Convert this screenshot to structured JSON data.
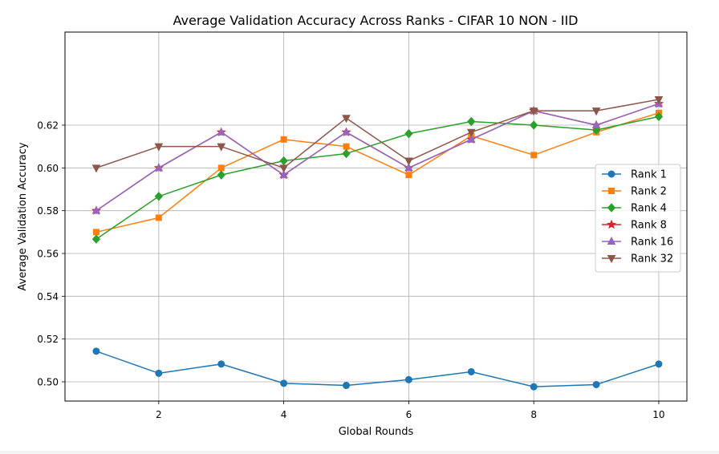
{
  "chart_data": {
    "type": "line",
    "title": "Average Validation Accuracy Across Ranks - CIFAR 10 NON - IID",
    "xlabel": "Global Rounds",
    "ylabel": "Average Validation Accuracy",
    "xlim": [
      0.5,
      10.45
    ],
    "ylim": [
      0.491,
      0.6635
    ],
    "x_ticks": [
      2,
      4,
      6,
      8,
      10
    ],
    "y_ticks": [
      0.5,
      0.52,
      0.54,
      0.56,
      0.58,
      0.6,
      0.62
    ],
    "x_tick_labels": [
      "2",
      "4",
      "6",
      "8",
      "10"
    ],
    "y_tick_labels": [
      "0.50",
      "0.52",
      "0.54",
      "0.56",
      "0.58",
      "0.60",
      "0.62"
    ],
    "grid": true,
    "legend_position": "center-right",
    "x": [
      1,
      2,
      3,
      4,
      5,
      6,
      7,
      8,
      9,
      10
    ],
    "series": [
      {
        "name": "Rank 1",
        "color": "#1f77b4",
        "marker": "circle",
        "values": [
          0.5143,
          0.504,
          0.5083,
          0.4993,
          0.4983,
          0.501,
          0.5047,
          0.4977,
          0.4987,
          0.5083
        ]
      },
      {
        "name": "Rank 2",
        "color": "#ff7f0e",
        "marker": "square",
        "values": [
          0.57,
          0.5767,
          0.6,
          0.6133,
          0.61,
          0.5967,
          0.615,
          0.606,
          0.6167,
          0.6257
        ]
      },
      {
        "name": "Rank 4",
        "color": "#2ca02c",
        "marker": "diamond",
        "values": [
          0.5667,
          0.5867,
          0.5967,
          0.6033,
          0.6067,
          0.616,
          0.6217,
          0.62,
          0.6177,
          0.624
        ]
      },
      {
        "name": "Rank 8",
        "color": "#d62728",
        "marker": "star",
        "values": [
          0.58,
          0.6,
          0.6167,
          0.5967,
          0.6167,
          0.6,
          0.6133,
          0.6267,
          0.62,
          0.63
        ]
      },
      {
        "name": "Rank 16",
        "color": "#9467bd",
        "marker": "triangle-up",
        "values": [
          0.58,
          0.6,
          0.6167,
          0.5967,
          0.6167,
          0.6,
          0.6133,
          0.6267,
          0.62,
          0.63
        ]
      },
      {
        "name": "Rank 32",
        "color": "#8c564b",
        "marker": "triangle-down",
        "values": [
          0.6,
          0.61,
          0.61,
          0.6,
          0.6233,
          0.6033,
          0.6167,
          0.6267,
          0.6267,
          0.632
        ]
      }
    ]
  }
}
